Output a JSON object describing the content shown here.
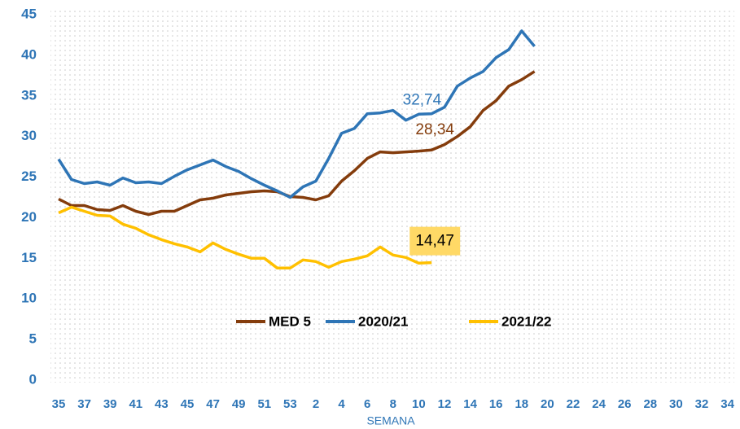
{
  "chart_data": {
    "type": "line",
    "x_label": "SEMANA",
    "categories": [
      "35",
      null,
      "37",
      null,
      "39",
      null,
      "41",
      null,
      "43",
      null,
      "45",
      null,
      "47",
      null,
      "49",
      null,
      "51",
      null,
      "53",
      null,
      "2",
      null,
      "4",
      null,
      "6",
      null,
      "8",
      null,
      "10",
      null,
      "12",
      null,
      "14",
      null,
      "16",
      null,
      "18",
      null,
      "20",
      null,
      "22",
      null,
      "24",
      null,
      "26",
      null,
      "28",
      null,
      "30",
      null,
      "32",
      null,
      "34"
    ],
    "series": [
      {
        "name": "MED 5",
        "color": "#843c0c",
        "values": [
          22.3,
          21.5,
          21.5,
          21.0,
          20.9,
          21.5,
          20.8,
          20.4,
          20.8,
          20.8,
          21.5,
          22.2,
          22.4,
          22.8,
          23.0,
          23.2,
          23.3,
          23.2,
          22.6,
          22.5,
          22.2,
          22.7,
          24.5,
          25.8,
          27.3,
          28.1,
          28.0,
          28.1,
          28.2,
          28.34,
          29.0,
          30.0,
          31.2,
          33.2,
          34.4,
          36.2,
          37.0,
          38.0,
          null,
          null,
          null,
          null,
          null,
          null,
          null,
          null,
          null,
          null,
          null,
          null,
          null,
          null,
          null
        ],
        "value_labels": [
          null,
          null,
          null,
          null,
          null,
          null,
          null,
          null,
          null,
          null,
          null,
          null,
          null,
          null,
          null,
          null,
          null,
          null,
          null,
          null,
          null,
          null,
          null,
          null,
          null,
          null,
          null,
          null,
          null,
          "28,34",
          null,
          null,
          null,
          null,
          null,
          null,
          null,
          null,
          null,
          null,
          null,
          null,
          null,
          null,
          null,
          null,
          null,
          null,
          null,
          null,
          null,
          null,
          null
        ]
      },
      {
        "name": "2020/21",
        "color": "#2e75b6",
        "values": [
          27.2,
          24.7,
          24.2,
          24.4,
          24.0,
          24.9,
          24.3,
          24.4,
          24.2,
          25.1,
          25.9,
          26.5,
          27.1,
          26.3,
          25.7,
          24.8,
          24.0,
          23.3,
          22.5,
          23.8,
          24.5,
          27.3,
          30.4,
          31.0,
          32.8,
          32.9,
          33.2,
          32.0,
          32.74,
          32.8,
          33.6,
          36.2,
          37.2,
          38.0,
          39.7,
          40.7,
          43.0,
          41.1,
          null,
          null,
          null,
          null,
          null,
          null,
          null,
          null,
          null,
          null,
          null,
          null,
          null,
          null,
          null
        ],
        "value_labels": [
          null,
          null,
          null,
          null,
          null,
          null,
          null,
          null,
          null,
          null,
          null,
          null,
          null,
          null,
          null,
          null,
          null,
          null,
          null,
          null,
          null,
          null,
          null,
          null,
          null,
          null,
          null,
          null,
          "32,74",
          null,
          null,
          null,
          null,
          null,
          null,
          null,
          null,
          null,
          null,
          null,
          null,
          null,
          null,
          null,
          null,
          null,
          null,
          null,
          null,
          null,
          null,
          null,
          null
        ]
      },
      {
        "name": "2021/22",
        "color": "#ffc000",
        "values": [
          20.6,
          21.3,
          20.8,
          20.3,
          20.2,
          19.2,
          18.7,
          17.9,
          17.3,
          16.8,
          16.4,
          15.8,
          16.9,
          16.1,
          15.5,
          15.0,
          15.0,
          13.8,
          13.8,
          14.8,
          14.6,
          13.9,
          14.6,
          14.9,
          15.3,
          16.4,
          15.4,
          15.1,
          14.4,
          14.47,
          null,
          null,
          null,
          null,
          null,
          null,
          null,
          null,
          null,
          null,
          null,
          null,
          null,
          null,
          null,
          null,
          null,
          null,
          null,
          null,
          null,
          null,
          null
        ],
        "value_labels": [
          null,
          null,
          null,
          null,
          null,
          null,
          null,
          null,
          null,
          null,
          null,
          null,
          null,
          null,
          null,
          null,
          null,
          null,
          null,
          null,
          null,
          null,
          null,
          null,
          null,
          null,
          null,
          null,
          null,
          "14,47",
          null,
          null,
          null,
          null,
          null,
          null,
          null,
          null,
          null,
          null,
          null,
          null,
          null,
          null,
          null,
          null,
          null,
          null,
          null,
          null,
          null,
          null,
          null
        ]
      }
    ],
    "ylim": [
      0,
      45
    ],
    "yticks": [
      0,
      5,
      10,
      15,
      20,
      25,
      30,
      35,
      40,
      45
    ],
    "grid": false,
    "legend": "bottom"
  }
}
